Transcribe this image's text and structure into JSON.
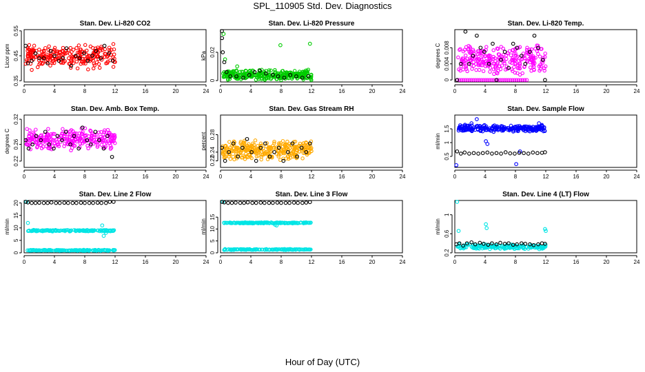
{
  "figure": {
    "title": "SPL_110905  Std. Dev. Diagnostics",
    "xlabel": "Hour of Day (UTC)"
  },
  "chart_data": [
    {
      "type": "scatter",
      "title": "Stan. Dev. Li-820 CO2",
      "xlabel": "",
      "ylabel": "Licor ppm",
      "xlim": [
        0,
        24
      ],
      "ylim": [
        0.345,
        0.555
      ],
      "xticks": [
        0,
        4,
        8,
        12,
        16,
        20,
        24
      ],
      "yticks": [
        0.35,
        0.45,
        0.55
      ],
      "series": [
        {
          "name": "mean",
          "color": "#000000",
          "x": [
            0.2,
            0.5,
            1.0,
            1.5,
            2.0,
            2.6,
            3.1,
            3.5,
            4.0,
            4.6,
            5.1,
            5.6,
            6.2,
            6.8,
            7.3,
            7.9,
            8.4,
            9.0,
            9.5,
            10.1,
            10.6,
            11.2,
            11.7
          ],
          "y": [
            0.49,
            0.42,
            0.43,
            0.46,
            0.44,
            0.44,
            0.42,
            0.47,
            0.45,
            0.43,
            0.44,
            0.48,
            0.41,
            0.45,
            0.44,
            0.46,
            0.43,
            0.45,
            0.47,
            0.44,
            0.49,
            0.46,
            0.43
          ]
        },
        {
          "name": "std",
          "color": "#ff0000",
          "kind": "cloud",
          "x_range": [
            0.2,
            12.0
          ],
          "y_center": 0.445,
          "y_spread": 0.055,
          "count": 240,
          "seed": 11
        }
      ]
    },
    {
      "type": "scatter",
      "title": "Stan. Dev. Li-820 Pressure",
      "xlabel": "",
      "ylabel": "kPa",
      "xlim": [
        0,
        24
      ],
      "ylim": [
        -0.001,
        0.036
      ],
      "xticks": [
        0,
        4,
        8,
        12,
        16,
        20,
        24
      ],
      "yticks": [
        0.0,
        0.02
      ],
      "series": [
        {
          "name": "mean",
          "color": "#000000",
          "x": [
            0.1,
            0.2,
            0.3,
            0.5,
            0.8,
            1.3,
            2.1,
            3.0,
            3.8,
            4.5,
            5.2,
            6.0,
            6.9,
            7.6,
            8.4,
            9.2,
            10.0,
            10.8,
            11.6
          ],
          "y": [
            0.035,
            0.03,
            0.02,
            0.013,
            0.006,
            0.003,
            0.003,
            0.002,
            0.004,
            0.006,
            0.007,
            0.005,
            0.004,
            0.003,
            0.002,
            0.004,
            0.003,
            0.002,
            0.003
          ]
        },
        {
          "name": "std",
          "color": "#00cc00",
          "kind": "cloud",
          "x_range": [
            0.3,
            12.0
          ],
          "y_center": 0.004,
          "y_spread": 0.004,
          "count": 300,
          "seed": 23
        },
        {
          "name": "outliers",
          "color": "#00cc00",
          "x": [
            0.4,
            0.6,
            7.9,
            11.8,
            2.2
          ],
          "y": [
            0.033,
            0.015,
            0.025,
            0.026,
            0.01
          ]
        }
      ]
    },
    {
      "type": "scatter",
      "title": "Stan. Dev. Li-820 Temp.",
      "xlabel": "",
      "ylabel": "degrees C",
      "xlim": [
        0,
        24
      ],
      "ylim": [
        -0.0005,
        0.0125
      ],
      "xticks": [
        0,
        4,
        8,
        12,
        16,
        20,
        24
      ],
      "yticks": [
        0.0,
        0.004,
        0.008
      ],
      "series": [
        {
          "name": "mean",
          "color": "#000000",
          "x": [
            0.3,
            0.8,
            1.4,
            1.9,
            2.4,
            2.9,
            3.4,
            3.9,
            4.5,
            5.0,
            5.5,
            6.1,
            6.6,
            7.1,
            7.7,
            8.2,
            8.8,
            9.3,
            9.9,
            10.5,
            11.0,
            11.6,
            11.9
          ],
          "y": [
            0.0,
            0.004,
            0.012,
            0.004,
            0.006,
            0.011,
            0.008,
            0.007,
            0.004,
            0.009,
            0.0,
            0.005,
            0.007,
            0.003,
            0.009,
            0.008,
            0.006,
            0.004,
            0.007,
            0.011,
            0.008,
            0.005,
            0.0
          ]
        },
        {
          "name": "std",
          "color": "#ff00ff",
          "kind": "cloud",
          "x_range": [
            0.3,
            12.0
          ],
          "y_center": 0.005,
          "y_spread": 0.004,
          "count": 260,
          "seed": 37
        },
        {
          "name": "zero",
          "color": "#ff00ff",
          "kind": "row",
          "x_range": [
            0.3,
            9.5
          ],
          "y": 0.0,
          "count": 35
        }
      ]
    },
    {
      "type": "scatter",
      "title": "Stan. Dev. Amb. Box Temp.",
      "xlabel": "",
      "ylabel": "degrees C",
      "xlim": [
        0,
        24
      ],
      "ylim": [
        0.205,
        0.33
      ],
      "xticks": [
        0,
        4,
        8,
        12,
        16,
        20,
        24
      ],
      "yticks": [
        0.22,
        0.26,
        0.32
      ],
      "series": [
        {
          "name": "mean",
          "color": "#000000",
          "x": [
            0.2,
            0.6,
            1.1,
            1.6,
            2.2,
            2.8,
            3.3,
            3.9,
            4.4,
            5.0,
            5.5,
            6.1,
            6.6,
            7.2,
            7.7,
            8.3,
            8.8,
            9.4,
            9.9,
            10.5,
            11.0,
            11.6
          ],
          "y": [
            0.27,
            0.25,
            0.26,
            0.28,
            0.27,
            0.29,
            0.26,
            0.25,
            0.28,
            0.27,
            0.29,
            0.26,
            0.28,
            0.25,
            0.3,
            0.27,
            0.26,
            0.29,
            0.27,
            0.25,
            0.28,
            0.23
          ]
        },
        {
          "name": "std",
          "color": "#ff00ff",
          "kind": "cloud",
          "x_range": [
            0.2,
            12.0
          ],
          "y_center": 0.272,
          "y_spread": 0.028,
          "count": 260,
          "seed": 41
        }
      ]
    },
    {
      "type": "scatter",
      "title": "Stan. Dev. Gas Stream RH",
      "xlabel": "",
      "ylabel": "percent",
      "xlim": [
        0,
        24
      ],
      "ylim": [
        0.205,
        0.325
      ],
      "xticks": [
        0,
        4,
        8,
        12,
        16,
        20,
        24
      ],
      "yticks": [
        0.22,
        0.24,
        0.28
      ],
      "series": [
        {
          "name": "mean",
          "color": "#000000",
          "x": [
            0.2,
            0.6,
            1.1,
            1.7,
            2.3,
            2.9,
            3.5,
            4.1,
            4.7,
            5.3,
            5.9,
            6.5,
            7.1,
            7.7,
            8.3,
            8.9,
            9.5,
            10.1,
            10.7,
            11.3,
            11.8
          ],
          "y": [
            0.25,
            0.22,
            0.24,
            0.26,
            0.23,
            0.25,
            0.27,
            0.24,
            0.22,
            0.25,
            0.26,
            0.23,
            0.24,
            0.25,
            0.22,
            0.24,
            0.26,
            0.23,
            0.25,
            0.24,
            0.26
          ]
        },
        {
          "name": "std",
          "color": "#ffaa00",
          "kind": "cloud",
          "x_range": [
            0.2,
            12.0
          ],
          "y_center": 0.245,
          "y_spread": 0.026,
          "count": 300,
          "seed": 53
        }
      ]
    },
    {
      "type": "scatter",
      "title": "Stan. Dev. Sample Flow",
      "xlabel": "",
      "ylabel": "ml/min",
      "xlim": [
        0,
        24
      ],
      "ylim": [
        0.1,
        2.0
      ],
      "xticks": [
        0,
        4,
        8,
        12,
        16,
        20,
        24
      ],
      "yticks": [
        0.5,
        1.0,
        1.5
      ],
      "series": [
        {
          "name": "mean",
          "color": "#000000",
          "x": [
            0.3,
            0.8,
            1.3,
            1.9,
            2.5,
            3.1,
            3.7,
            4.3,
            4.9,
            5.5,
            6.1,
            6.7,
            7.3,
            7.9,
            8.5,
            9.1,
            9.7,
            10.3,
            10.9,
            11.5,
            11.9
          ],
          "y": [
            0.68,
            0.6,
            0.64,
            0.6,
            0.62,
            0.6,
            0.62,
            0.64,
            0.6,
            0.62,
            0.6,
            0.65,
            0.61,
            0.6,
            0.63,
            0.62,
            0.6,
            0.64,
            0.62,
            0.63,
            0.65
          ]
        },
        {
          "name": "std",
          "color": "#0000ff",
          "kind": "cloud",
          "x_range": [
            0.5,
            12.0
          ],
          "y_center": 1.52,
          "y_spread": 0.14,
          "count": 240,
          "seed": 67
        },
        {
          "name": "outliers",
          "color": "#0000ff",
          "x": [
            0.2,
            2.2,
            2.9,
            4.1,
            4.3,
            8.1,
            8.6,
            11.1
          ],
          "y": [
            0.18,
            1.7,
            1.85,
            1.05,
            0.95,
            0.22,
            0.68,
            1.7
          ]
        }
      ]
    },
    {
      "type": "scatter",
      "title": "Stan. Dev. Line 2 Flow",
      "xlabel": "",
      "ylabel": "ml/min",
      "xlim": [
        0,
        24
      ],
      "ylim": [
        0,
        21
      ],
      "xticks": [
        0,
        4,
        8,
        12,
        16,
        20,
        24
      ],
      "yticks": [
        0,
        5,
        10,
        15,
        20
      ],
      "series": [
        {
          "name": "mean",
          "color": "#000000",
          "x": [
            0.2,
            0.5,
            1.0,
            1.5,
            2.0,
            2.6,
            3.1,
            3.6,
            4.2,
            4.7,
            5.3,
            5.8,
            6.4,
            6.9,
            7.5,
            8.0,
            8.6,
            9.1,
            9.7,
            10.2,
            10.8,
            11.3,
            11.8
          ],
          "y": [
            20.5,
            20.2,
            20.0,
            20.0,
            20.1,
            20.0,
            20.0,
            20.2,
            20.0,
            20.0,
            20.1,
            20.0,
            20.0,
            20.0,
            20.1,
            20.0,
            20.0,
            20.0,
            20.1,
            20.0,
            20.0,
            20.5,
            20.6
          ]
        },
        {
          "name": "upper",
          "color": "#00e5e5",
          "kind": "band",
          "x_range": [
            0.4,
            12.0
          ],
          "y_center": 8.9,
          "y_spread": 0.35,
          "count": 160,
          "seed": 71
        },
        {
          "name": "lower",
          "color": "#00e5e5",
          "kind": "band",
          "x_range": [
            0.4,
            12.0
          ],
          "y_center": 1.0,
          "y_spread": 0.25,
          "count": 160,
          "seed": 73
        },
        {
          "name": "outliers",
          "color": "#00e5e5",
          "x": [
            0.3,
            0.5,
            10.3,
            10.5,
            10.8
          ],
          "y": [
            21.0,
            12.0,
            11.0,
            6.8,
            8.0
          ]
        }
      ]
    },
    {
      "type": "scatter",
      "title": "Stan. Dev. Line 3 Flow",
      "xlabel": "",
      "ylabel": "ml/min",
      "xlim": [
        0,
        24
      ],
      "ylim": [
        0,
        22
      ],
      "xticks": [
        0,
        4,
        8,
        12,
        16,
        20,
        24
      ],
      "yticks": [
        0,
        5,
        10,
        15
      ],
      "series": [
        {
          "name": "mean",
          "color": "#000000",
          "x": [
            0.2,
            0.5,
            1.0,
            1.5,
            2.0,
            2.6,
            3.1,
            3.6,
            4.2,
            4.7,
            5.3,
            5.8,
            6.4,
            6.9,
            7.5,
            8.0,
            8.6,
            9.1,
            9.7,
            10.2,
            10.8,
            11.3,
            11.8
          ],
          "y": [
            21.5,
            21.2,
            21.0,
            21.0,
            21.1,
            21.0,
            21.0,
            21.2,
            21.0,
            21.0,
            21.1,
            21.0,
            21.0,
            21.0,
            21.1,
            21.0,
            21.0,
            21.0,
            21.1,
            21.0,
            21.0,
            21.1,
            21.3
          ]
        },
        {
          "name": "upper",
          "color": "#00e5e5",
          "kind": "band",
          "x_range": [
            0.4,
            12.0
          ],
          "y_center": 12.6,
          "y_spread": 0.3,
          "count": 160,
          "seed": 79
        },
        {
          "name": "lower",
          "color": "#00e5e5",
          "kind": "band",
          "x_range": [
            0.4,
            12.0
          ],
          "y_center": 1.4,
          "y_spread": 0.25,
          "count": 160,
          "seed": 83
        },
        {
          "name": "outliers",
          "color": "#00e5e5",
          "x": [
            0.3,
            7.2,
            7.4
          ],
          "y": [
            21.8,
            11.8,
            11.5
          ]
        }
      ]
    },
    {
      "type": "scatter",
      "title": "Stan. Dev. Line 4 (LT) Flow",
      "xlabel": "",
      "ylabel": "ml/min",
      "xlim": [
        0,
        24
      ],
      "ylim": [
        0.2,
        1.3
      ],
      "xticks": [
        0,
        4,
        8,
        12,
        16,
        20,
        24
      ],
      "yticks": [
        0.2,
        0.6,
        1.0
      ],
      "series": [
        {
          "name": "mean",
          "color": "#000000",
          "x": [
            0.2,
            0.6,
            1.1,
            1.6,
            2.2,
            2.7,
            3.3,
            3.8,
            4.4,
            4.9,
            5.5,
            6.0,
            6.6,
            7.1,
            7.7,
            8.2,
            8.8,
            9.3,
            9.9,
            10.4,
            11.0,
            11.5,
            11.9
          ],
          "y": [
            0.38,
            0.4,
            0.35,
            0.4,
            0.42,
            0.38,
            0.41,
            0.39,
            0.37,
            0.4,
            0.38,
            0.41,
            0.39,
            0.4,
            0.37,
            0.38,
            0.4,
            0.39,
            0.38,
            0.36,
            0.38,
            0.4,
            0.39
          ]
        },
        {
          "name": "std",
          "color": "#00e5e5",
          "kind": "cloud",
          "x_range": [
            0.3,
            12.0
          ],
          "y_center": 0.33,
          "y_spread": 0.06,
          "count": 200,
          "seed": 89
        },
        {
          "name": "outliers",
          "color": "#00e5e5",
          "x": [
            0.3,
            0.5,
            4.1,
            4.2,
            11.9,
            12.0
          ],
          "y": [
            1.28,
            0.66,
            0.8,
            0.72,
            0.7,
            0.66
          ]
        }
      ]
    }
  ]
}
